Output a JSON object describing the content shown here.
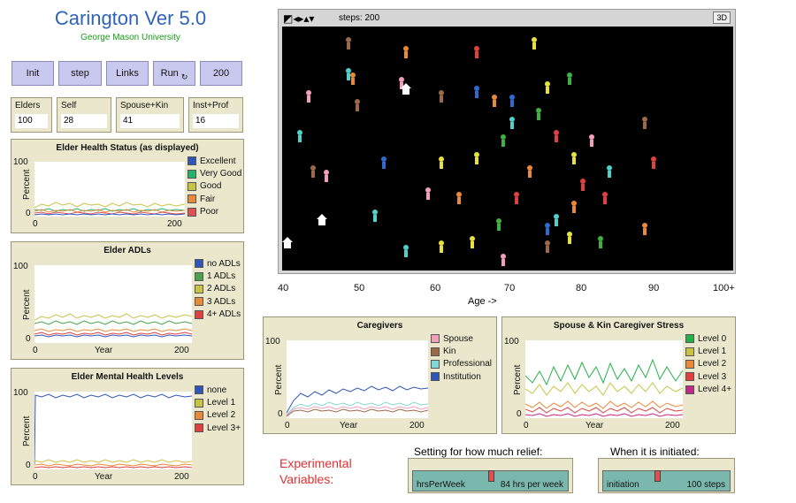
{
  "app": {
    "title": "Carington Ver 5.0",
    "subtitle": "George Mason University"
  },
  "buttons": {
    "init": "Init",
    "step": "step",
    "links": "Links",
    "run": "Run",
    "count": "200"
  },
  "monitors": [
    {
      "label": "Elders",
      "value": "100"
    },
    {
      "label": "Self",
      "value": "28"
    },
    {
      "label": "Spouse+Kin",
      "value": "41"
    },
    {
      "label": "Inst+Prof",
      "value": "16"
    }
  ],
  "view": {
    "steps_label": "steps: 200",
    "three_d": "3D"
  },
  "age_axis": {
    "ticks": [
      "40",
      "50",
      "60",
      "70",
      "80",
      "90",
      "100+"
    ],
    "label": "Age ->"
  },
  "plots": {
    "health": {
      "title": "Elder Health Status (as displayed)",
      "ylabel": "Percent",
      "ymax": "100",
      "ymin": "0",
      "xmin": "0",
      "xmax": "200",
      "xlabel": "Year",
      "legend": [
        {
          "name": "Excellent",
          "color": "#2f55b8"
        },
        {
          "name": "Very Good",
          "color": "#26b26b"
        },
        {
          "name": "Good",
          "color": "#c9c344"
        },
        {
          "name": "Fair",
          "color": "#e88a3a"
        },
        {
          "name": "Poor",
          "color": "#e05050"
        }
      ]
    },
    "adls": {
      "title": "Elder ADLs",
      "ylabel": "Percent",
      "ymax": "100",
      "ymin": "0",
      "xmin": "0",
      "xmax": "200",
      "xlabel": "Year",
      "legend": [
        {
          "name": "no ADLs",
          "color": "#2f55b8"
        },
        {
          "name": "1 ADLs",
          "color": "#4aa24a"
        },
        {
          "name": "2 ADLs",
          "color": "#c9c344"
        },
        {
          "name": "3 ADLs",
          "color": "#e88a3a"
        },
        {
          "name": "4+ ADLs",
          "color": "#e04040"
        }
      ]
    },
    "mental": {
      "title": "Elder Mental Health Levels",
      "ylabel": "Percent",
      "ymax": "100",
      "ymin": "0",
      "xmin": "0",
      "xmax": "200",
      "xlabel": "Year",
      "legend": [
        {
          "name": "none",
          "color": "#2f55b8"
        },
        {
          "name": "Level 1",
          "color": "#c9c344"
        },
        {
          "name": "Level 2",
          "color": "#e88a3a"
        },
        {
          "name": "Level 3+",
          "color": "#e04040"
        }
      ]
    },
    "caregivers": {
      "title": "Caregivers",
      "ylabel": "Percent",
      "ymax": "100",
      "ymin": "0",
      "xmin": "0",
      "xmax": "200",
      "xlabel": "Year",
      "legend": [
        {
          "name": "Spouse",
          "color": "#f0a0b8"
        },
        {
          "name": "Kin",
          "color": "#9c6a48"
        },
        {
          "name": "Professional",
          "color": "#80d8d8"
        },
        {
          "name": "Institution",
          "color": "#2f55b8"
        }
      ]
    },
    "stress": {
      "title": "Spouse & Kin Caregiver Stress",
      "ylabel": "Percent",
      "ymax": "100",
      "ymin": "0",
      "xmin": "0",
      "xmax": "200",
      "xlabel": "Year",
      "legend": [
        {
          "name": "Level 0",
          "color": "#26b04a"
        },
        {
          "name": "Level 1",
          "color": "#c9c344"
        },
        {
          "name": "Level 2",
          "color": "#e88a3a"
        },
        {
          "name": "Level 3",
          "color": "#e04040"
        },
        {
          "name": "Level 4+",
          "color": "#c0288a"
        }
      ]
    }
  },
  "experimental": {
    "label": "Experimental Variables:",
    "relief_caption": "Setting for how much relief:",
    "relief_name": "hrsPerWeek",
    "relief_value": "84 hrs per week",
    "relief_fraction": 0.5,
    "init_caption": "When it is initiated:",
    "init_name": "initiation",
    "init_value": "100 steps",
    "init_fraction": 0.42
  }
}
